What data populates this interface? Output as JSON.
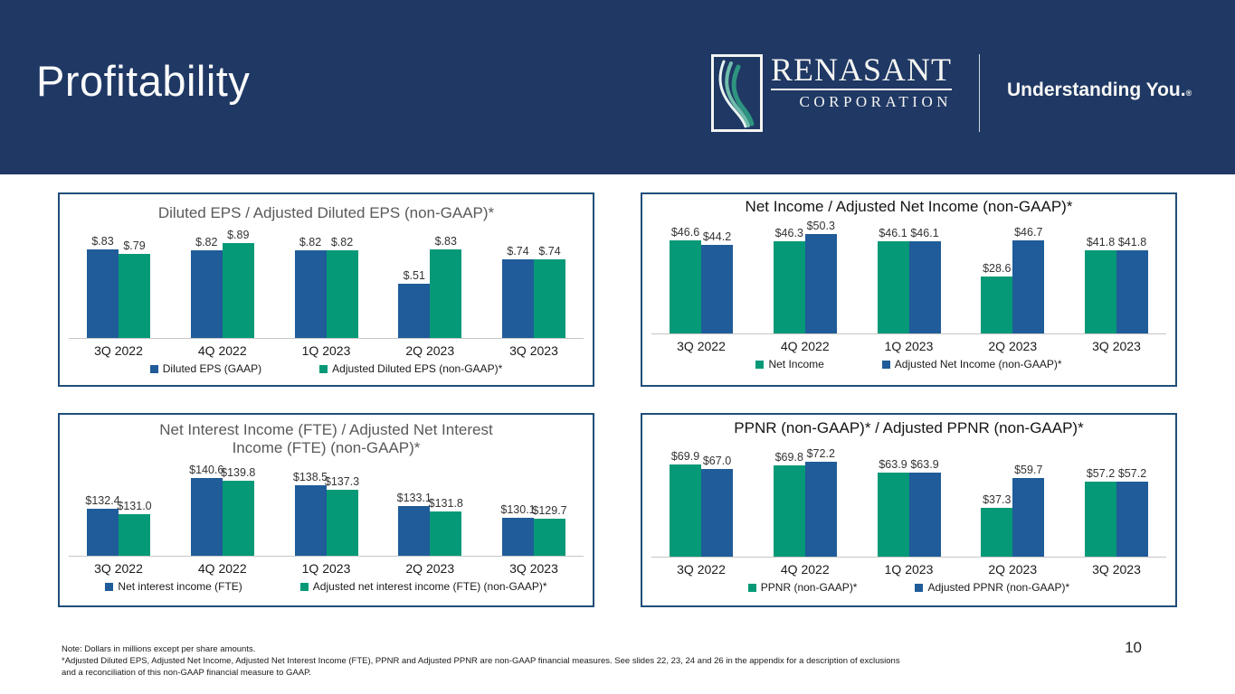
{
  "header": {
    "title": "Profitability",
    "logo_name": "RENASANT",
    "logo_sub": "CORPORATION",
    "tagline": "Understanding You.",
    "tagline_mark": "®"
  },
  "colors": {
    "banner_navy": "#1F3864",
    "box_border_navy": "#1F4E79",
    "bar_blue": "#1F5C99",
    "bar_green": "#059977",
    "title_gray": "#595959",
    "title_dark": "#141414"
  },
  "chart_data": [
    {
      "type": "bar",
      "title": "Diluted EPS / Adjusted Diluted EPS (non-GAAP)*",
      "title_color": "#595959",
      "categories": [
        "3Q 2022",
        "4Q 2022",
        "1Q 2023",
        "2Q 2023",
        "3Q 2023"
      ],
      "series": [
        {
          "name": "Diluted EPS (GAAP)",
          "color": "#1F5C99",
          "values": [
            0.83,
            0.82,
            0.82,
            0.51,
            0.74
          ],
          "labels": [
            "$.83",
            "$.82",
            "$.82",
            "$.51",
            "$.74"
          ]
        },
        {
          "name": "Adjusted Diluted EPS (non-GAAP)*",
          "color": "#059977",
          "values": [
            0.79,
            0.89,
            0.82,
            0.83,
            0.74
          ],
          "labels": [
            "$.79",
            "$.89",
            "$.82",
            "$.83",
            "$.74"
          ]
        }
      ],
      "ylim": [
        0,
        1.05
      ],
      "xlabel": "",
      "ylabel": "",
      "grid": false,
      "legend_position": "bottom"
    },
    {
      "type": "bar",
      "title": "Net Income / Adjusted Net Income (non-GAAP)*",
      "title_color": "#141414",
      "categories": [
        "3Q 2022",
        "4Q 2022",
        "1Q 2023",
        "2Q 2023",
        "3Q 2023"
      ],
      "series": [
        {
          "name": "Net Income",
          "color": "#059977",
          "values": [
            46.6,
            46.3,
            46.1,
            28.6,
            41.8
          ],
          "labels": [
            "$46.6",
            "$46.3",
            "$46.1",
            "$28.6",
            "$41.8"
          ]
        },
        {
          "name": "Adjusted Net Income (non-GAAP)*",
          "color": "#1F5C99",
          "values": [
            44.2,
            50.3,
            46.1,
            46.7,
            41.8
          ],
          "labels": [
            "$44.2",
            "$50.3",
            "$46.1",
            "$46.7",
            "$41.8"
          ]
        }
      ],
      "ylim": [
        0,
        57
      ],
      "xlabel": "",
      "ylabel": "",
      "grid": false,
      "legend_position": "bottom"
    },
    {
      "type": "bar",
      "title": "Net Interest Income (FTE) / Adjusted Net Interest\nIncome (FTE) (non-GAAP)*",
      "title_color": "#595959",
      "categories": [
        "3Q 2022",
        "4Q 2022",
        "1Q 2023",
        "2Q 2023",
        "3Q 2023"
      ],
      "series": [
        {
          "name": "Net interest income (FTE)",
          "color": "#1F5C99",
          "values": [
            132.4,
            140.6,
            138.5,
            133.1,
            130.1
          ],
          "labels": [
            "$132.4",
            "$140.6",
            "$138.5",
            "$133.1",
            "$130.1"
          ]
        },
        {
          "name": "Adjusted net interest income (FTE) (non-GAAP)*",
          "color": "#059977",
          "values": [
            131.0,
            139.8,
            137.3,
            131.8,
            129.7
          ],
          "labels": [
            "$131.0",
            "$139.8",
            "$137.3",
            "$131.8",
            "$129.7"
          ]
        }
      ],
      "ylim": [
        120,
        145
      ],
      "xlabel": "",
      "ylabel": "",
      "grid": false,
      "legend_position": "bottom"
    },
    {
      "type": "bar",
      "title": "PPNR (non-GAAP)* / Adjusted PPNR (non-GAAP)*",
      "title_color": "#141414",
      "categories": [
        "3Q 2022",
        "4Q 2022",
        "1Q 2023",
        "2Q 2023",
        "3Q 2023"
      ],
      "series": [
        {
          "name": "PPNR (non-GAAP)*",
          "color": "#059977",
          "values": [
            69.9,
            69.8,
            63.9,
            37.3,
            57.2
          ],
          "labels": [
            "$69.9",
            "$69.8",
            "$63.9",
            "$37.3",
            "$57.2"
          ]
        },
        {
          "name": "Adjusted PPNR (non-GAAP)*",
          "color": "#1F5C99",
          "values": [
            67.0,
            72.2,
            63.9,
            59.7,
            57.2
          ],
          "labels": [
            "$67.0",
            "$72.2",
            "$63.9",
            "$59.7",
            "$57.2"
          ]
        }
      ],
      "ylim": [
        0,
        88
      ],
      "xlabel": "",
      "ylabel": "",
      "grid": false,
      "legend_position": "bottom"
    }
  ],
  "footer": {
    "note_lines": [
      "Note: Dollars in millions except per share amounts.",
      "*Adjusted Diluted EPS, Adjusted Net Income, Adjusted Net Interest Income (FTE), PPNR and Adjusted PPNR are non-GAAP financial measures. See slides 22, 23, 24 and 26 in the appendix for a description of exclusions",
      "and a reconciliation of this non-GAAP financial measure to GAAP."
    ],
    "page_number": "10"
  }
}
